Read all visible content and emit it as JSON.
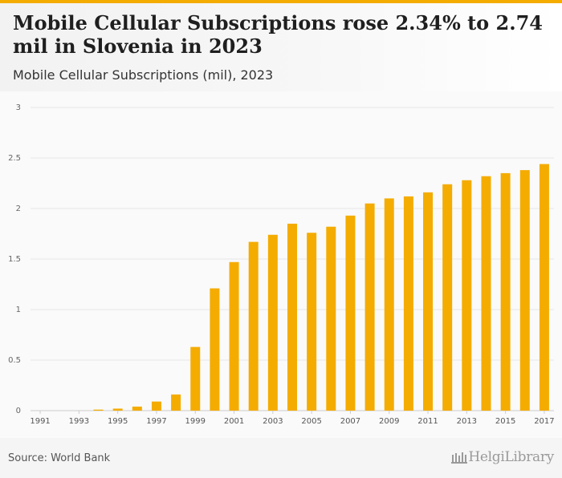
{
  "header": {
    "title": "Mobile Cellular Subscriptions rose 2.34% to 2.74 mil in Slovenia in 2023",
    "subtitle": "Mobile Cellular Subscriptions (mil), 2023"
  },
  "footer": {
    "source": "Source: World Bank",
    "logo_text": "HelgiLibrary"
  },
  "colors": {
    "bar": "#f4ac00",
    "accent": "#f4ac00",
    "grid": "#e6e6e6"
  },
  "chart_data": {
    "type": "bar",
    "title": "Mobile Cellular Subscriptions (mil), 2023",
    "xlabel": "",
    "ylabel": "",
    "ylim": [
      0,
      3
    ],
    "yticks": [
      "0",
      "0.5",
      "1",
      "1.5",
      "2",
      "2.5",
      "3"
    ],
    "categories": [
      "1991",
      "1992",
      "1993",
      "1994",
      "1995",
      "1996",
      "1997",
      "1998",
      "1999",
      "2000",
      "2001",
      "2002",
      "2003",
      "2004",
      "2005",
      "2006",
      "2007",
      "2008",
      "2009",
      "2010",
      "2011",
      "2012",
      "2013",
      "2014",
      "2015",
      "2016",
      "2017"
    ],
    "xtick_labels": [
      "1991",
      "1993",
      "1995",
      "1997",
      "1999",
      "2001",
      "2003",
      "2005",
      "2007",
      "2009",
      "2011",
      "2013",
      "2015",
      "2017"
    ],
    "values": [
      0.0,
      0.0,
      0.0,
      0.01,
      0.02,
      0.04,
      0.09,
      0.16,
      0.63,
      1.21,
      1.47,
      1.67,
      1.74,
      1.85,
      1.76,
      1.82,
      1.93,
      2.05,
      2.1,
      2.12,
      2.16,
      2.24,
      2.28,
      2.32,
      2.35,
      2.38,
      2.44
    ],
    "grid": true
  }
}
